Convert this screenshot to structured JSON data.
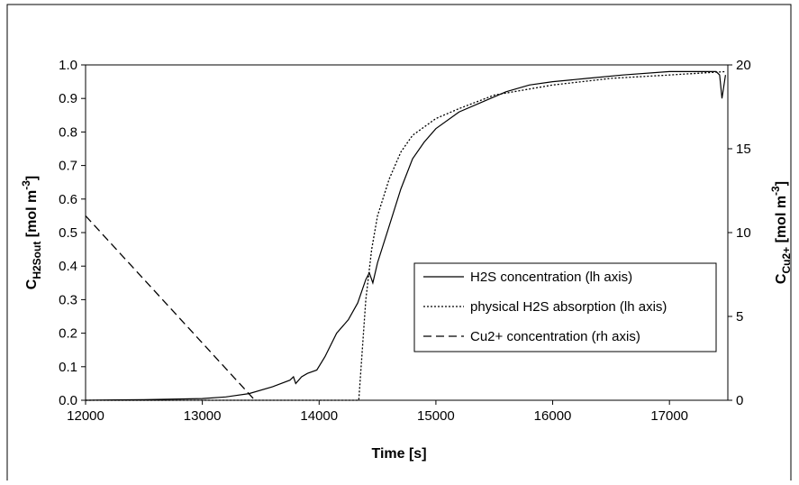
{
  "chart_data": {
    "type": "line",
    "x_label": "Time [s]",
    "y_label": {
      "main": "C",
      "sub": "H2Sout",
      "unit": " [mol m",
      "sup": "-3",
      "end": "]"
    },
    "y2_label": {
      "main": "C",
      "sub": "Cu2+",
      "unit": " [mol m",
      "sup": "-3",
      "end": "]"
    },
    "xlim": [
      12000,
      17500
    ],
    "xticks": [
      12000,
      13000,
      14000,
      15000,
      16000,
      17000
    ],
    "ylim": [
      0,
      1
    ],
    "yticks": [
      {
        "value": 0,
        "label": "0.0"
      },
      0.1,
      0.2,
      0.3,
      0.4,
      0.5,
      0.6,
      0.7,
      0.8,
      0.9,
      {
        "value": 1,
        "label": "1.0"
      }
    ],
    "y2lim": [
      0,
      20
    ],
    "y2ticks": [
      0,
      5,
      10,
      15,
      20
    ],
    "series": [
      {
        "name": "H2S concentration (lh axis)",
        "color": "#000000",
        "dash": "solid",
        "x": [
          12000,
          12500,
          13000,
          13200,
          13400,
          13600,
          13750,
          13780,
          13800,
          13850,
          13900,
          13980,
          14050,
          14150,
          14250,
          14330,
          14400,
          14430,
          14460,
          14500,
          14600,
          14700,
          14800,
          14900,
          15000,
          15200,
          15400,
          15600,
          15800,
          16000,
          16300,
          16600,
          17000,
          17300,
          17400,
          17430,
          17450,
          17480
        ],
        "values": [
          0,
          0.002,
          0.005,
          0.01,
          0.02,
          0.04,
          0.06,
          0.07,
          0.05,
          0.07,
          0.08,
          0.09,
          0.13,
          0.2,
          0.24,
          0.29,
          0.36,
          0.38,
          0.35,
          0.41,
          0.52,
          0.63,
          0.72,
          0.77,
          0.81,
          0.86,
          0.89,
          0.92,
          0.94,
          0.95,
          0.96,
          0.97,
          0.98,
          0.98,
          0.98,
          0.97,
          0.9,
          0.97
        ]
      },
      {
        "name": "physical H2S absorption (lh axis)",
        "color": "#000000",
        "dash": "dotted",
        "x": [
          12000,
          14340,
          14360,
          14400,
          14450,
          14500,
          14600,
          14700,
          14800,
          15000,
          15200,
          15500,
          16000,
          16500,
          17000,
          17480
        ],
        "values": [
          0,
          0,
          0.1,
          0.3,
          0.45,
          0.55,
          0.66,
          0.74,
          0.79,
          0.84,
          0.87,
          0.91,
          0.94,
          0.96,
          0.97,
          0.98
        ]
      },
      {
        "name": "Cu2+ concentration (rh axis)",
        "color": "#000000",
        "dash": "dashed",
        "axis": "y2",
        "x": [
          12000,
          13450
        ],
        "values": [
          11,
          0
        ]
      }
    ]
  }
}
